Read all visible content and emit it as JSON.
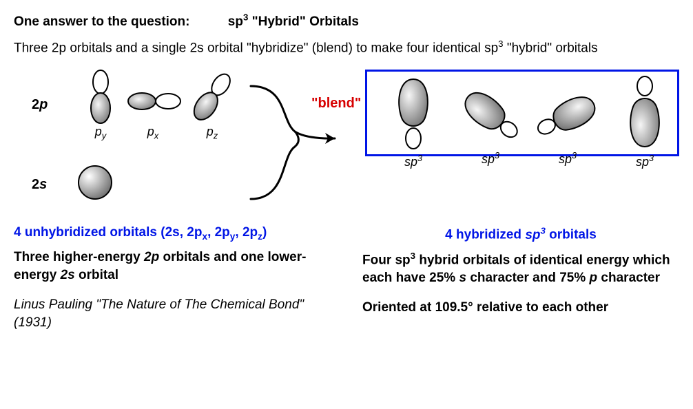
{
  "colors": {
    "text": "#000000",
    "accent_blue": "#0015e6",
    "accent_red": "#d70000",
    "bg": "#ffffff",
    "orbital_fill_light": "#f6f6f6",
    "orbital_fill_dark": "#8c8c8c",
    "orbital_stroke": "#000000"
  },
  "header": {
    "question_prefix": "One answer to the question:",
    "answer_html": "sp<sup>3</sup> \"Hybrid\" Orbitals"
  },
  "intro_html": "Three 2p orbitals and a single 2s orbital \"hybridize\" (blend) to make four identical sp<sup>3</sup> \"hybrid\" orbitals",
  "left": {
    "label_2p": "2",
    "label_2p_ital": "p",
    "label_2s": "2",
    "label_2s_ital": "s",
    "p_orbitals": [
      {
        "sub_html": "p<sub>y</sub>"
      },
      {
        "sub_html": "p<sub>x</sub>"
      },
      {
        "sub_html": "p<sub>z</sub>"
      }
    ]
  },
  "blend_label": "\"blend\"",
  "right": {
    "orbitals": [
      {
        "sub_html": "sp<sup>3</sup>"
      },
      {
        "sub_html": "sp<sup>3</sup>"
      },
      {
        "sub_html": "sp<sup>3</sup>"
      },
      {
        "sub_html": "sp<sup>3</sup>"
      }
    ]
  },
  "bottom": {
    "left_blue_html": "4 unhybridized orbitals (2s, 2p<sub>x</sub>, 2p<sub>y</sub>, 2p<sub>z</sub>)",
    "left_black_html": "Three higher-energy <span class=\"ital\">2p</span> orbitals and one lower-energy <span class=\"ital\">2s</span> orbital",
    "citation": "Linus Pauling \"The Nature of The Chemical Bond\" (1931)",
    "right_blue_html": "4 hybridized <span class=\"ital\">sp<sup>3</sup></span> orbitals",
    "right_black_html": "Four sp<sup>3</sup> hybrid orbitals of identical energy which each have 25% <span class=\"ital\">s</span> character and 75% <span class=\"ital\">p</span> character",
    "right_extra": "Oriented at 109.5° relative to each other"
  }
}
